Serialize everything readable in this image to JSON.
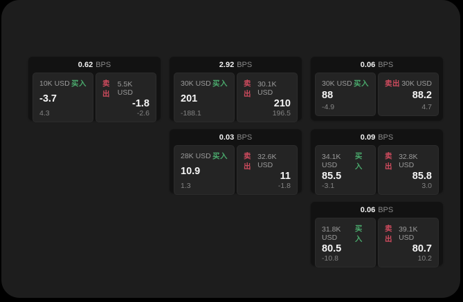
{
  "app": {
    "bps_label": "BPS",
    "buy_label": "买入",
    "sell_label": "卖出"
  },
  "colors": {
    "buy_accent": "#4aa96c",
    "sell_accent": "#cf4b5e",
    "page_bg": "#1d1d1d",
    "card_bg": "#121212",
    "panel_bg": "#242424"
  },
  "cards": [
    {
      "bps": "0.62",
      "buy": {
        "size": "10K USD",
        "value": "-3.7",
        "sub": "4.3"
      },
      "sell": {
        "size": "5.5K USD",
        "value": "-1.8",
        "sub": "-2.6"
      }
    },
    {
      "bps": "2.92",
      "buy": {
        "size": "30K USD",
        "value": "201",
        "sub": "-188.1"
      },
      "sell": {
        "size": "30.1K USD",
        "value": "210",
        "sub": "196.5"
      }
    },
    {
      "bps": "0.06",
      "buy": {
        "size": "30K USD",
        "value": "88",
        "sub": "-4.9"
      },
      "sell": {
        "size": "30K USD",
        "value": "88.2",
        "sub": "4.7"
      }
    },
    {
      "bps": "0.03",
      "buy": {
        "size": "28K USD",
        "value": "10.9",
        "sub": "1.3"
      },
      "sell": {
        "size": "32.6K USD",
        "value": "11",
        "sub": "-1.8"
      }
    },
    {
      "bps": "0.09",
      "buy": {
        "size": "34.1K USD",
        "value": "85.5",
        "sub": "-3.1"
      },
      "sell": {
        "size": "32.8K USD",
        "value": "85.8",
        "sub": "3.0"
      }
    },
    {
      "bps": "0.06",
      "buy": {
        "size": "31.8K USD",
        "value": "80.5",
        "sub": "-10.8"
      },
      "sell": {
        "size": "39.1K USD",
        "value": "80.7",
        "sub": "10.2"
      }
    }
  ]
}
